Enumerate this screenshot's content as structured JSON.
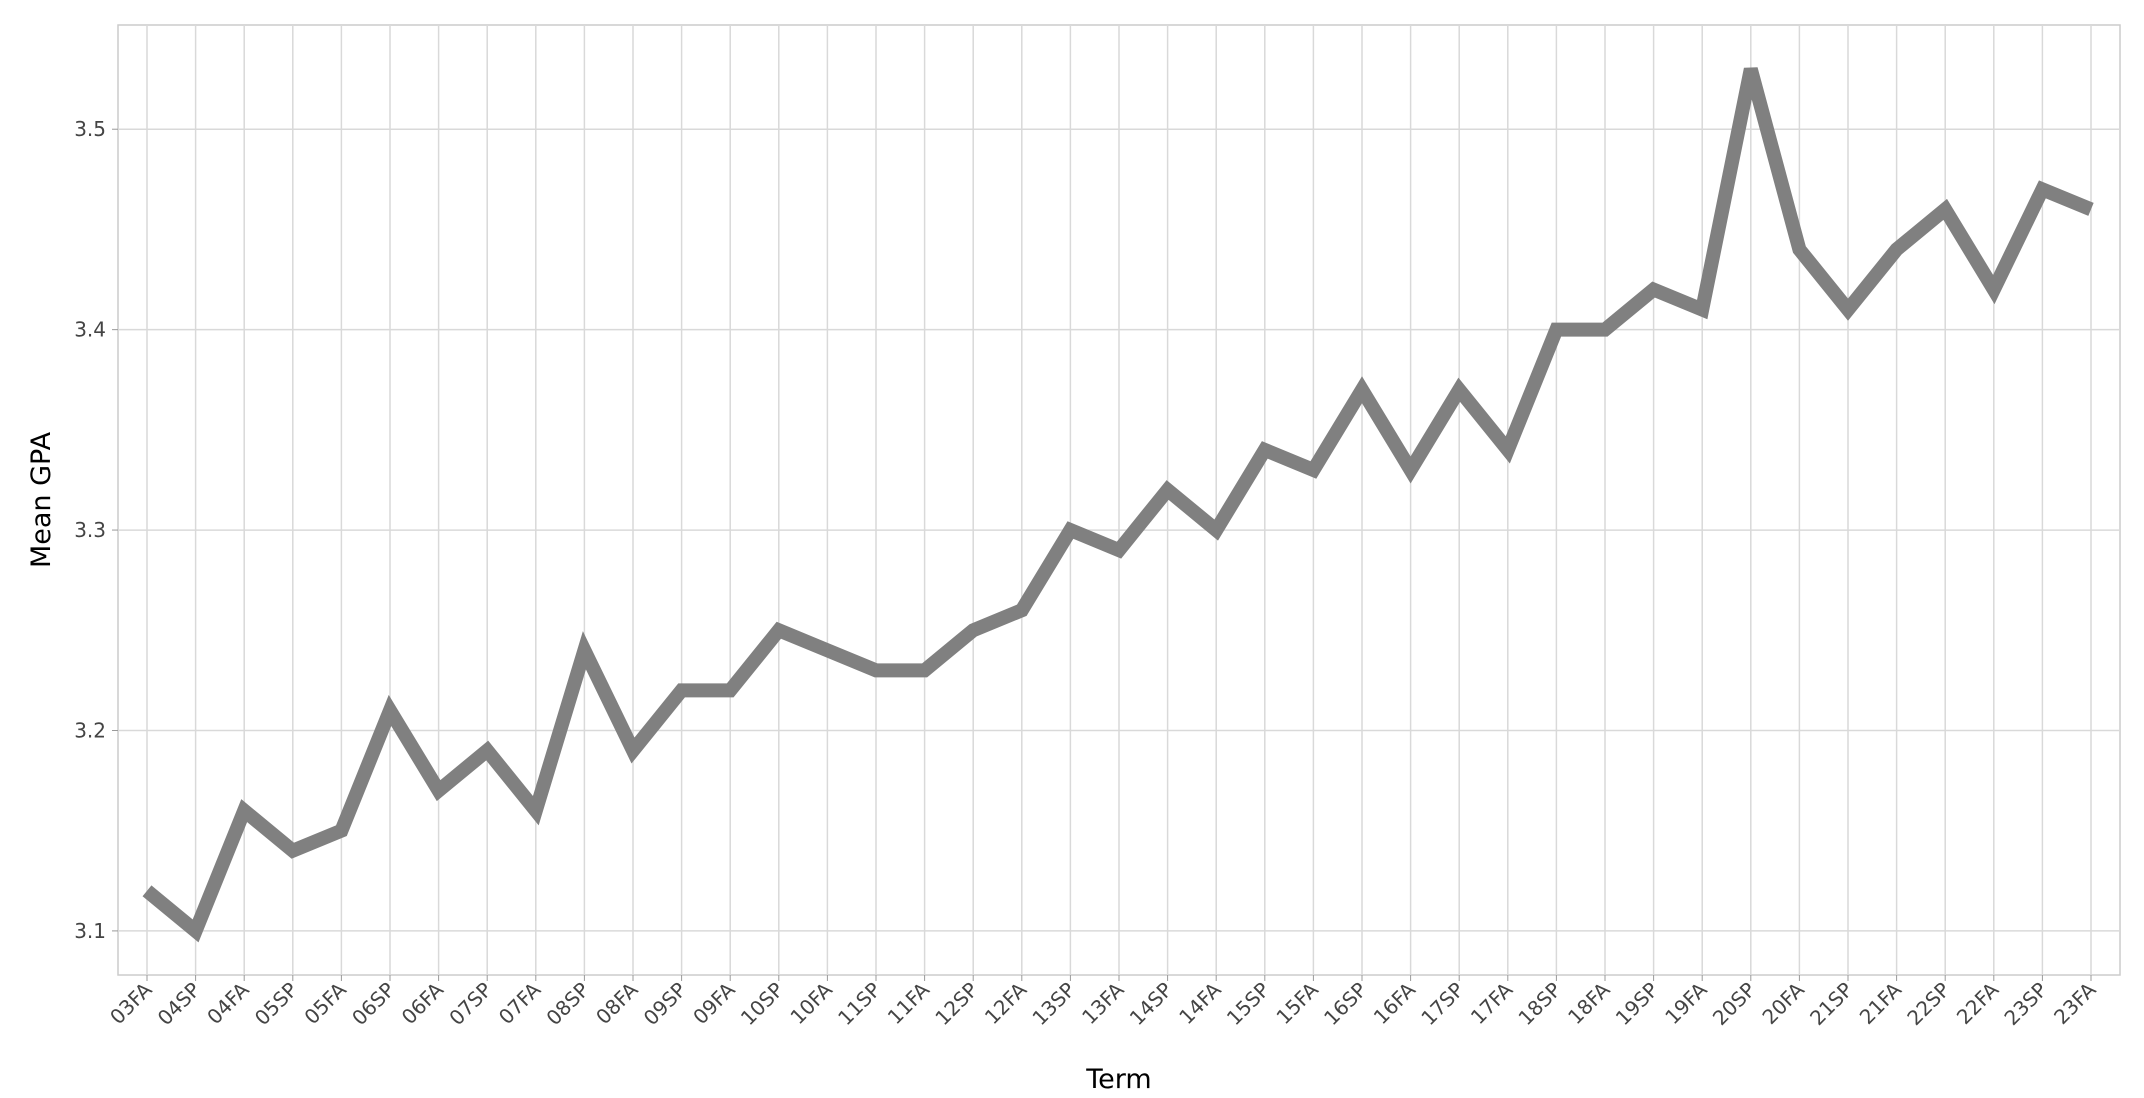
{
  "chart_data": {
    "type": "line",
    "x_label": "Term",
    "y_label": "Mean GPA",
    "categories": [
      "03FA",
      "04SP",
      "04FA",
      "05SP",
      "05FA",
      "06SP",
      "06FA",
      "07SP",
      "07FA",
      "08SP",
      "08FA",
      "09SP",
      "09FA",
      "10SP",
      "10FA",
      "11SP",
      "11FA",
      "12SP",
      "12FA",
      "13SP",
      "13FA",
      "14SP",
      "14FA",
      "15SP",
      "15FA",
      "16SP",
      "16FA",
      "17SP",
      "17FA",
      "18SP",
      "18FA",
      "19SP",
      "19FA",
      "20SP",
      "20FA",
      "21SP",
      "21FA",
      "22SP",
      "22FA",
      "23SP",
      "23FA"
    ],
    "values": [
      3.12,
      3.1,
      3.16,
      3.14,
      3.15,
      3.21,
      3.17,
      3.19,
      3.16,
      3.24,
      3.19,
      3.22,
      3.22,
      3.25,
      3.24,
      3.23,
      3.23,
      3.25,
      3.26,
      3.3,
      3.29,
      3.32,
      3.3,
      3.34,
      3.33,
      3.37,
      3.33,
      3.37,
      3.34,
      3.4,
      3.4,
      3.42,
      3.41,
      3.53,
      3.44,
      3.41,
      3.44,
      3.46,
      3.42,
      3.47,
      3.46
    ],
    "color": "#808080",
    "ylim": [
      3.078,
      3.552
    ],
    "yticks": [
      3.1,
      3.2,
      3.3,
      3.4,
      3.5
    ],
    "grid": true
  }
}
